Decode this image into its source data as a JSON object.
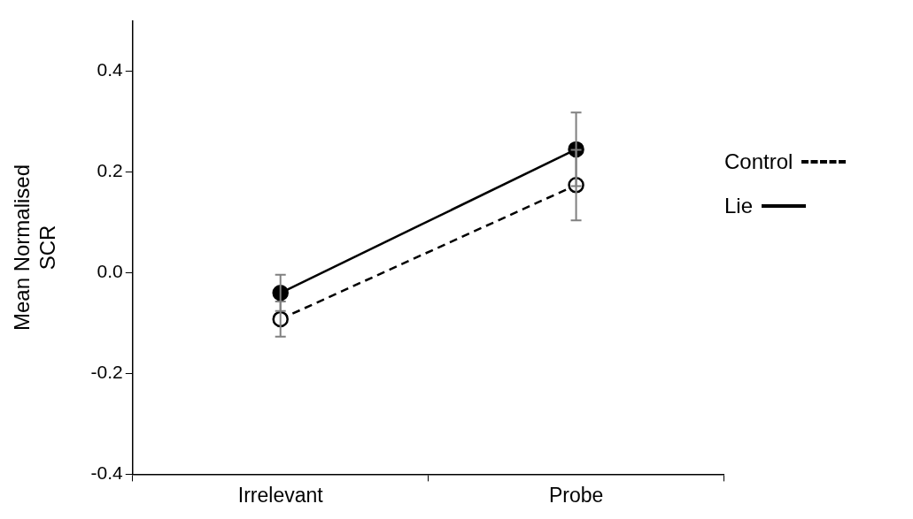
{
  "chart_data": {
    "type": "line",
    "ylabel": "Mean Normalised SCR",
    "categories": [
      "Irrelevant",
      "Probe"
    ],
    "series": [
      {
        "name": "Control",
        "color": "#000000",
        "values": [
          -0.092,
          0.174
        ],
        "errors": [
          0.035,
          0.07
        ],
        "line_style": "dashed"
      },
      {
        "name": "Lie",
        "color": "#000000",
        "values": [
          -0.04,
          0.245
        ],
        "errors": [
          0.036,
          0.073
        ],
        "line_style": "solid"
      }
    ],
    "ylim": [
      -0.4,
      0.5
    ],
    "yticks": [
      -0.4,
      -0.2,
      {
        "value": 0,
        "label": "0.0"
      },
      0.2,
      0.4
    ],
    "grid": false,
    "legend": "right",
    "marker": "circle"
  }
}
